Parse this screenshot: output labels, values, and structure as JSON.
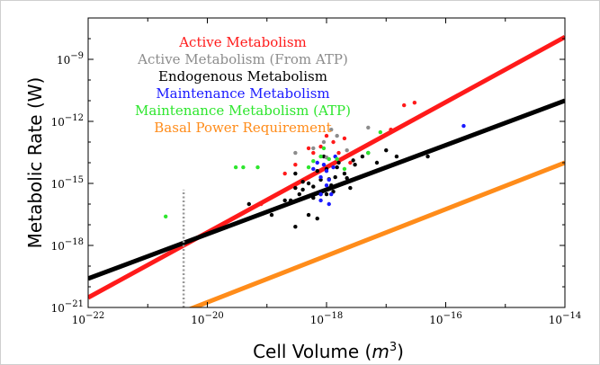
{
  "chart_data": {
    "type": "scatter",
    "xlabel": "Cell Volume",
    "xlabel_unit_base": "m",
    "xlabel_unit_exp": "3",
    "ylabel": "Metabolic Rate (W)",
    "x_scale": "log",
    "y_scale": "log",
    "xlim": [
      1e-22,
      1e-14
    ],
    "ylim": [
      1e-21,
      1e-07
    ],
    "x_ticks": [
      {
        "value": 1e-22,
        "base": "10",
        "exp": "−22"
      },
      {
        "value": 1e-20,
        "base": "10",
        "exp": "−20"
      },
      {
        "value": 1e-18,
        "base": "10",
        "exp": "−18"
      },
      {
        "value": 1e-16,
        "base": "10",
        "exp": "−16"
      },
      {
        "value": 1e-14,
        "base": "10",
        "exp": "−14"
      }
    ],
    "y_ticks": [
      {
        "value": 1e-21,
        "base": "10",
        "exp": "−21"
      },
      {
        "value": 1e-18,
        "base": "10",
        "exp": "−18"
      },
      {
        "value": 1e-15,
        "base": "10",
        "exp": "−15"
      },
      {
        "value": 1e-12,
        "base": "10",
        "exp": "−12"
      },
      {
        "value": 1e-09,
        "base": "10",
        "exp": "−9"
      }
    ],
    "legend_position": "top-left",
    "legend": [
      {
        "name": "Active Metabolism",
        "color": "#ff1a1a"
      },
      {
        "name": "Active Metabolism (From ATP)",
        "color": "#8c8c8c"
      },
      {
        "name": "Endogenous Metabolism",
        "color": "#000000"
      },
      {
        "name": "Maintenance Metabolism",
        "color": "#1a1aff"
      },
      {
        "name": "Maintenance Metabolism (ATP)",
        "color": "#2ee62e"
      },
      {
        "name": "Basal Power Requirement",
        "color": "#ff8c1a"
      }
    ],
    "fit_lines": [
      {
        "color": "#ff1a1a",
        "x": [
          1e-22,
          1e-14
        ],
        "y": [
          3e-21,
          1.2e-08
        ]
      },
      {
        "color": "#000000",
        "x": [
          1e-22,
          1e-14
        ],
        "y": [
          2.5e-20,
          1e-11
        ]
      },
      {
        "color": "#ff8c1a",
        "x": [
          1e-22,
          1e-14
        ],
        "y": [
          1e-23,
          1e-14
        ]
      }
    ],
    "vertical_line": {
      "x": 4e-21,
      "y_range": [
        1e-21,
        5e-16
      ],
      "color": "#999999",
      "style": "dotted"
    },
    "series": [
      {
        "color": "#000000",
        "points": [
          [
            5e-20,
            1e-16
          ],
          [
            1.2e-19,
            3e-17
          ],
          [
            2e-19,
            1.5e-16
          ],
          [
            3e-19,
            3e-15
          ],
          [
            4e-19,
            5e-16
          ],
          [
            5e-19,
            1e-15
          ],
          [
            6e-19,
            2e-16
          ],
          [
            7e-19,
            4e-15
          ],
          [
            8e-19,
            1.5e-15
          ],
          [
            9e-19,
            2e-14
          ],
          [
            1e-18,
            5e-15
          ],
          [
            1.2e-18,
            8e-16
          ],
          [
            1.4e-18,
            2e-15
          ],
          [
            1.6e-18,
            1e-14
          ],
          [
            2e-18,
            3e-15
          ],
          [
            2.5e-18,
            6e-16
          ],
          [
            3e-18,
            8e-15
          ],
          [
            4e-18,
            2e-14
          ],
          [
            5e-18,
            3e-14
          ],
          [
            7e-18,
            1e-14
          ],
          [
            1e-17,
            4e-14
          ],
          [
            1.5e-17,
            2e-14
          ],
          [
            5e-17,
            2e-14
          ],
          [
            3e-19,
            6e-16
          ],
          [
            4e-19,
            1.2e-15
          ],
          [
            6e-19,
            7e-16
          ],
          [
            8e-19,
            3e-16
          ],
          [
            1.1e-18,
            1.6e-15
          ],
          [
            1.3e-18,
            4e-16
          ],
          [
            2.2e-18,
            1.8e-15
          ],
          [
            5e-19,
            3e-17
          ],
          [
            7e-19,
            2e-17
          ],
          [
            3e-19,
            8e-18
          ],
          [
            2.5e-19,
            1.5e-16
          ],
          [
            3.5e-19,
            3e-16
          ],
          [
            1e-18,
            3e-16
          ],
          [
            1.5e-18,
            6e-15
          ],
          [
            2.8e-18,
            1.3e-14
          ]
        ]
      },
      {
        "color": "#ff1a1a",
        "points": [
          [
            2e-19,
            3e-15
          ],
          [
            3e-19,
            8e-15
          ],
          [
            5e-19,
            5e-14
          ],
          [
            6e-19,
            3e-14
          ],
          [
            8e-19,
            6e-14
          ],
          [
            1e-18,
            2e-13
          ],
          [
            1.3e-18,
            1e-13
          ],
          [
            1.6e-18,
            3e-14
          ],
          [
            2e-18,
            1.5e-13
          ],
          [
            2.5e-18,
            1e-14
          ],
          [
            1.2e-17,
            4e-13
          ],
          [
            2e-17,
            6e-12
          ],
          [
            3e-17,
            8e-12
          ],
          [
            8e-20,
            1e-16
          ]
        ]
      },
      {
        "color": "#1a1aff",
        "points": [
          [
            6e-19,
            5e-15
          ],
          [
            7e-19,
            1e-14
          ],
          [
            8e-19,
            2e-15
          ],
          [
            8e-19,
            3e-16
          ],
          [
            9e-19,
            8e-15
          ],
          [
            1e-18,
            4e-15
          ],
          [
            1e-18,
            8e-16
          ],
          [
            1.1e-18,
            1.5e-15
          ],
          [
            1.2e-18,
            3e-16
          ],
          [
            1.3e-18,
            6e-15
          ],
          [
            1.4e-18,
            2e-14
          ],
          [
            1.1e-18,
            1e-16
          ],
          [
            8e-19,
            1.5e-16
          ],
          [
            2e-16,
            6e-13
          ]
        ]
      },
      {
        "color": "#8c8c8c",
        "points": [
          [
            3e-19,
            3e-14
          ],
          [
            6e-19,
            5e-14
          ],
          [
            9e-19,
            1e-13
          ],
          [
            1.2e-18,
            4e-13
          ],
          [
            1.5e-18,
            2e-13
          ],
          [
            2.2e-18,
            4e-14
          ],
          [
            5e-18,
            5e-13
          ],
          [
            1e-18,
            1.8e-14
          ]
        ]
      },
      {
        "color": "#2ee62e",
        "points": [
          [
            2e-21,
            2.5e-17
          ],
          [
            3e-20,
            6e-15
          ],
          [
            4e-20,
            6e-15
          ],
          [
            7e-20,
            6e-15
          ],
          [
            5e-19,
            6e-15
          ],
          [
            8e-19,
            2e-14
          ],
          [
            1.1e-18,
            1.5e-14
          ],
          [
            1.5e-18,
            1.5e-14
          ],
          [
            2e-18,
            5e-15
          ],
          [
            5e-18,
            3e-14
          ],
          [
            8e-18,
            3e-13
          ],
          [
            6e-19,
            1.2e-14
          ],
          [
            9e-19,
            5e-14
          ]
        ]
      }
    ]
  }
}
